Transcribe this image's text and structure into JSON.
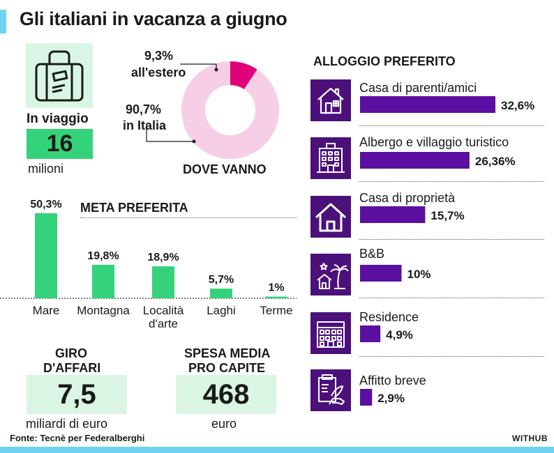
{
  "title": "Gli italiani in vacanza a giugno",
  "travelers": {
    "label": "In viaggio",
    "value": "16",
    "unit": "milioni"
  },
  "destination": {
    "title": "DOVE VANNO",
    "abroad_pct": "9,3%",
    "abroad_label": "all'estero",
    "italy_pct": "90,7%",
    "italy_label": "in Italia"
  },
  "housing": {
    "title": "ALLOGGIO PREFERITO",
    "items": [
      {
        "label": "Casa di parenti/amici",
        "pct": "32,6%",
        "icon": "house-icon"
      },
      {
        "label": "Albergo e villaggio turistico",
        "pct": "26,36%",
        "icon": "hotel-icon"
      },
      {
        "label": "Casa di proprietà",
        "pct": "15,7%",
        "icon": "home-outline-icon"
      },
      {
        "label": "B&B",
        "pct": "10%",
        "icon": "bnb-palm-icon"
      },
      {
        "label": "Residence",
        "pct": "4,9%",
        "icon": "residence-building-icon"
      },
      {
        "label": "Affitto breve",
        "pct": "2,9%",
        "icon": "short-rental-icon"
      }
    ]
  },
  "meta": {
    "title": "META PREFERITA"
  },
  "business": {
    "label_line1": "GIRO",
    "label_line2": "D'AFFARI",
    "value": "7,5",
    "unit": "miliardi di euro"
  },
  "spending": {
    "label_line1": "SPESA MEDIA",
    "label_line2": "PRO CAPITE",
    "value": "468",
    "unit": "euro"
  },
  "source": "Fonte: Tecnè per Federalberghi",
  "brand": "WITHUB",
  "colors": {
    "green": "#34d27a",
    "light_green": "#d9f6e4",
    "purple": "#5b0fa0",
    "dark_purple": "#4c107a",
    "magenta": "#e0007a",
    "pink": "#f6cfe6",
    "cyan": "#6fd3f3"
  },
  "chart_data": [
    {
      "type": "pie",
      "title": "DOVE VANNO",
      "categories": [
        "all'estero",
        "in Italia"
      ],
      "values": [
        9.3,
        90.7
      ],
      "value_labels": [
        "9,3%",
        "90,7%"
      ],
      "colors": [
        "#e0007a",
        "#f6cfe6"
      ]
    },
    {
      "type": "bar",
      "title": "META PREFERITA",
      "categories": [
        "Mare",
        "Montagna",
        "Località d'arte",
        "Laghi",
        "Terme"
      ],
      "category_lines": [
        [
          "Mare"
        ],
        [
          "Montagna"
        ],
        [
          "Località",
          "d'arte"
        ],
        [
          "Laghi"
        ],
        [
          "Terme"
        ]
      ],
      "values": [
        50.3,
        19.8,
        18.9,
        5.7,
        1
      ],
      "value_labels": [
        "50,3%",
        "19,8%",
        "18,9%",
        "5,7%",
        "1%"
      ],
      "ylim": [
        0,
        50.3
      ]
    },
    {
      "type": "bar",
      "orientation": "horizontal",
      "title": "ALLOGGIO PREFERITO",
      "categories": [
        "Casa di parenti/amici",
        "Albergo e villaggio turistico",
        "Casa di proprietà",
        "B&B",
        "Residence",
        "Affitto breve"
      ],
      "values": [
        32.6,
        26.36,
        15.7,
        10,
        4.9,
        2.9
      ],
      "value_labels": [
        "32,6%",
        "26,36%",
        "15,7%",
        "10%",
        "4,9%",
        "2,9%"
      ],
      "xlim": [
        0,
        32.6
      ]
    }
  ]
}
